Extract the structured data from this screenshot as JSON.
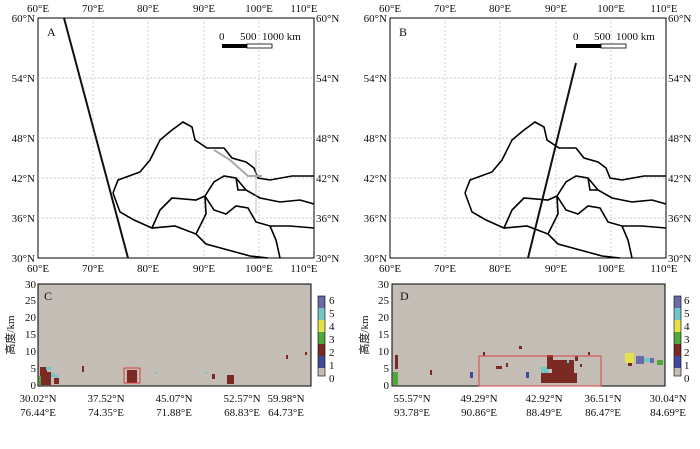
{
  "maps": [
    {
      "label": "A",
      "lon_labels": [
        "60°E",
        "70°E",
        "80°E",
        "90°E",
        "100°E",
        "110°E"
      ],
      "lat_labels": [
        "60°N",
        "54°N",
        "48°N",
        "42°N",
        "36°N",
        "30°N"
      ],
      "scale_labels": [
        "0",
        "500",
        "1000 km"
      ],
      "track": [
        [
          64.2,
          60.0
        ],
        [
          77.0,
          30.0
        ]
      ]
    },
    {
      "label": "B",
      "lon_labels": [
        "60°E",
        "70°E",
        "80°E",
        "90°E",
        "100°E",
        "110°E"
      ],
      "lat_labels": [
        "60°N",
        "54°N",
        "48°N",
        "42°N",
        "36°N",
        "30°N"
      ],
      "scale_labels": [
        "0",
        "500",
        "1000 km"
      ],
      "track": [
        [
          93.8,
          55.6
        ],
        [
          84.7,
          30.0
        ]
      ]
    }
  ],
  "profiles": [
    {
      "label": "C",
      "ylabel": "高度/km",
      "y_ticks": [
        "0",
        "5",
        "10",
        "15",
        "20",
        "25",
        "30"
      ],
      "x_ticks": [
        {
          "lat": "30.02°N",
          "lon": "76.44°E"
        },
        {
          "lat": "37.52°N",
          "lon": "74.35°E"
        },
        {
          "lat": "45.07°N",
          "lon": "71.88°E"
        },
        {
          "lat": "52.57°N",
          "lon": "68.83°E"
        },
        {
          "lat": "59.98°N",
          "lon": "64.73°E"
        }
      ],
      "colorbar_labels": [
        "6",
        "5",
        "4",
        "3",
        "2",
        "1",
        "0"
      ]
    },
    {
      "label": "D",
      "ylabel": "高度/km",
      "y_ticks": [
        "0",
        "5",
        "10",
        "15",
        "20",
        "25",
        "30"
      ],
      "x_ticks": [
        {
          "lat": "55.57°N",
          "lon": "93.78°E"
        },
        {
          "lat": "49.29°N",
          "lon": "90.86°E"
        },
        {
          "lat": "42.92°N",
          "lon": "88.49°E"
        },
        {
          "lat": "36.51°N",
          "lon": "86.47°E"
        },
        {
          "lat": "30.04°N",
          "lon": "84.69°E"
        }
      ],
      "colorbar_labels": [
        "6",
        "5",
        "4",
        "3",
        "2",
        "1",
        "0"
      ]
    }
  ],
  "colors": {
    "background_class": "#c3bdb6",
    "class1": "#3f4a9c",
    "class2": "#7a2a22",
    "class3": "#4ea83b",
    "class4": "#e6e04a",
    "class5": "#72c6c6",
    "class6": "#6a6aa8",
    "highlight_box": "#d94040"
  }
}
